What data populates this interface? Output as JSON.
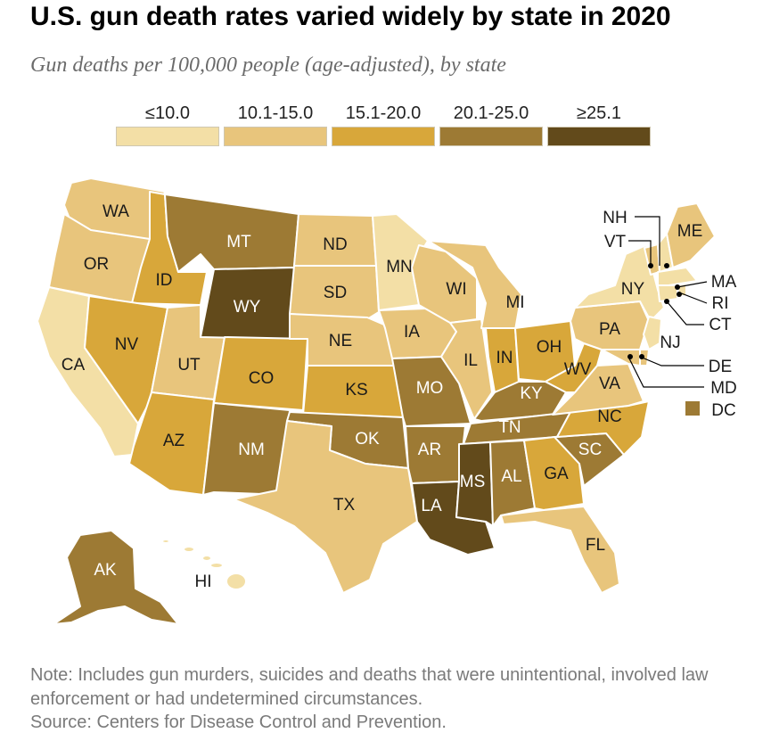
{
  "header": {
    "title": "U.S. gun death rates varied widely by state in 2020",
    "subtitle": "Gun deaths per 100,000 people (age-adjusted), by state"
  },
  "legend": [
    {
      "label": "≤10.0",
      "color": "#f3dfa6"
    },
    {
      "label": "10.1-15.0",
      "color": "#e8c57c"
    },
    {
      "label": "15.1-20.0",
      "color": "#d8a73a"
    },
    {
      "label": "20.1-25.0",
      "color": "#9d7a34"
    },
    {
      "label": "≥25.1",
      "color": "#624a1b"
    }
  ],
  "map": {
    "states": [
      {
        "abbr": "WA",
        "bin": 1
      },
      {
        "abbr": "OR",
        "bin": 1
      },
      {
        "abbr": "CA",
        "bin": 0
      },
      {
        "abbr": "ID",
        "bin": 2
      },
      {
        "abbr": "NV",
        "bin": 2
      },
      {
        "abbr": "UT",
        "bin": 1
      },
      {
        "abbr": "AZ",
        "bin": 2
      },
      {
        "abbr": "MT",
        "bin": 3
      },
      {
        "abbr": "WY",
        "bin": 4
      },
      {
        "abbr": "CO",
        "bin": 2
      },
      {
        "abbr": "NM",
        "bin": 3
      },
      {
        "abbr": "ND",
        "bin": 1
      },
      {
        "abbr": "SD",
        "bin": 1
      },
      {
        "abbr": "NE",
        "bin": 1
      },
      {
        "abbr": "KS",
        "bin": 2
      },
      {
        "abbr": "OK",
        "bin": 3
      },
      {
        "abbr": "TX",
        "bin": 1
      },
      {
        "abbr": "MN",
        "bin": 0
      },
      {
        "abbr": "IA",
        "bin": 1
      },
      {
        "abbr": "MO",
        "bin": 3
      },
      {
        "abbr": "AR",
        "bin": 3
      },
      {
        "abbr": "LA",
        "bin": 4
      },
      {
        "abbr": "WI",
        "bin": 1
      },
      {
        "abbr": "IL",
        "bin": 1
      },
      {
        "abbr": "MI",
        "bin": 1
      },
      {
        "abbr": "IN",
        "bin": 2
      },
      {
        "abbr": "OH",
        "bin": 2
      },
      {
        "abbr": "KY",
        "bin": 3
      },
      {
        "abbr": "TN",
        "bin": 3
      },
      {
        "abbr": "MS",
        "bin": 4
      },
      {
        "abbr": "AL",
        "bin": 3
      },
      {
        "abbr": "GA",
        "bin": 2
      },
      {
        "abbr": "FL",
        "bin": 1
      },
      {
        "abbr": "SC",
        "bin": 3
      },
      {
        "abbr": "NC",
        "bin": 2
      },
      {
        "abbr": "VA",
        "bin": 1
      },
      {
        "abbr": "WV",
        "bin": 2
      },
      {
        "abbr": "PA",
        "bin": 1
      },
      {
        "abbr": "NY",
        "bin": 0
      },
      {
        "abbr": "VT",
        "bin": 1
      },
      {
        "abbr": "NH",
        "bin": 0
      },
      {
        "abbr": "ME",
        "bin": 1
      },
      {
        "abbr": "MA",
        "bin": 0
      },
      {
        "abbr": "RI",
        "bin": 0
      },
      {
        "abbr": "CT",
        "bin": 0
      },
      {
        "abbr": "NJ",
        "bin": 0
      },
      {
        "abbr": "DE",
        "bin": 1
      },
      {
        "abbr": "MD",
        "bin": 1
      },
      {
        "abbr": "DC",
        "bin": 3
      },
      {
        "abbr": "AK",
        "bin": 3
      },
      {
        "abbr": "HI",
        "bin": 0
      }
    ]
  },
  "footer": {
    "note": "Note: Includes gun murders, suicides and deaths that were unintentional, involved law enforcement or had undetermined circumstances.",
    "source": "Source: Centers for Disease Control and Prevention."
  }
}
